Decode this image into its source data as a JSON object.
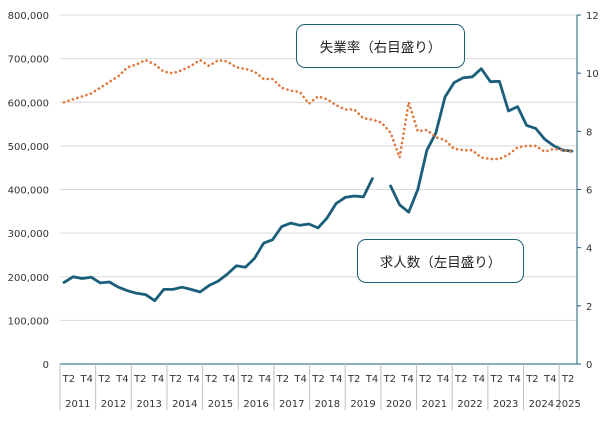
{
  "chart_data": {
    "type": "line",
    "title": "",
    "left_axis": {
      "ylim": [
        0,
        800000
      ],
      "ticks": [
        "0",
        "100,000",
        "200,000",
        "300,000",
        "400,000",
        "500,000",
        "600,000",
        "700,000",
        "800,000"
      ]
    },
    "right_axis": {
      "ylim": [
        0,
        12
      ],
      "ticks": [
        "0",
        "2",
        "4",
        "6",
        "8",
        "10",
        "12"
      ]
    },
    "x_quarter_ticks": [
      "T2",
      "T4",
      "T2",
      "T4",
      "T2",
      "T4",
      "T2",
      "T4",
      "T2",
      "T4",
      "T2",
      "T4",
      "T2",
      "T4",
      "T2",
      "T4",
      "T2",
      "T4",
      "T2",
      "T4",
      "T2",
      "T4",
      "T2",
      "T4",
      "T2",
      "T4",
      "T2",
      "T4",
      "T2"
    ],
    "x_year_labels": [
      "2011",
      "2012",
      "2013",
      "2014",
      "2015",
      "2016",
      "2017",
      "2018",
      "2019",
      "2020",
      "2021",
      "2022",
      "2023",
      "2024",
      "2025"
    ],
    "annotations": {
      "unemployment": "失業率（右目盛り）",
      "job_openings": "求人数（左目盛り）"
    },
    "series": [
      {
        "id": "job_openings",
        "axis": "left",
        "color": "#1b5e7b",
        "style": "solid",
        "values": [
          187000,
          200000,
          196000,
          199000,
          186000,
          188000,
          176000,
          168000,
          162000,
          159000,
          145000,
          171000,
          171000,
          176000,
          171000,
          165000,
          180000,
          190000,
          206000,
          225000,
          222000,
          242000,
          277000,
          285000,
          315000,
          323000,
          318000,
          321000,
          312000,
          335000,
          368000,
          382000,
          385000,
          383000,
          425000,
          null,
          408000,
          365000,
          348000,
          400000,
          490000,
          530000,
          612000,
          645000,
          656000,
          658000,
          677000,
          647000,
          648000,
          580000,
          590000,
          547000,
          540000,
          515000,
          500000,
          490000,
          488000
        ]
      },
      {
        "id": "unemployment",
        "axis": "right",
        "color": "#e0763a",
        "style": "dotted",
        "values": [
          9.0,
          9.1,
          9.2,
          9.3,
          9.5,
          9.7,
          9.9,
          10.2,
          10.3,
          10.45,
          10.3,
          10.05,
          10.0,
          10.1,
          10.25,
          10.45,
          10.25,
          10.45,
          10.4,
          10.2,
          10.15,
          10.05,
          9.8,
          9.8,
          9.5,
          9.4,
          9.35,
          8.95,
          9.2,
          9.1,
          8.9,
          8.75,
          8.75,
          8.45,
          8.4,
          8.3,
          7.95,
          7.1,
          9.0,
          8.0,
          8.05,
          7.8,
          7.7,
          7.4,
          7.35,
          7.35,
          7.1,
          7.05,
          7.05,
          7.2,
          7.45,
          7.5,
          7.5,
          7.3,
          7.4,
          7.35,
          7.3
        ]
      }
    ]
  }
}
